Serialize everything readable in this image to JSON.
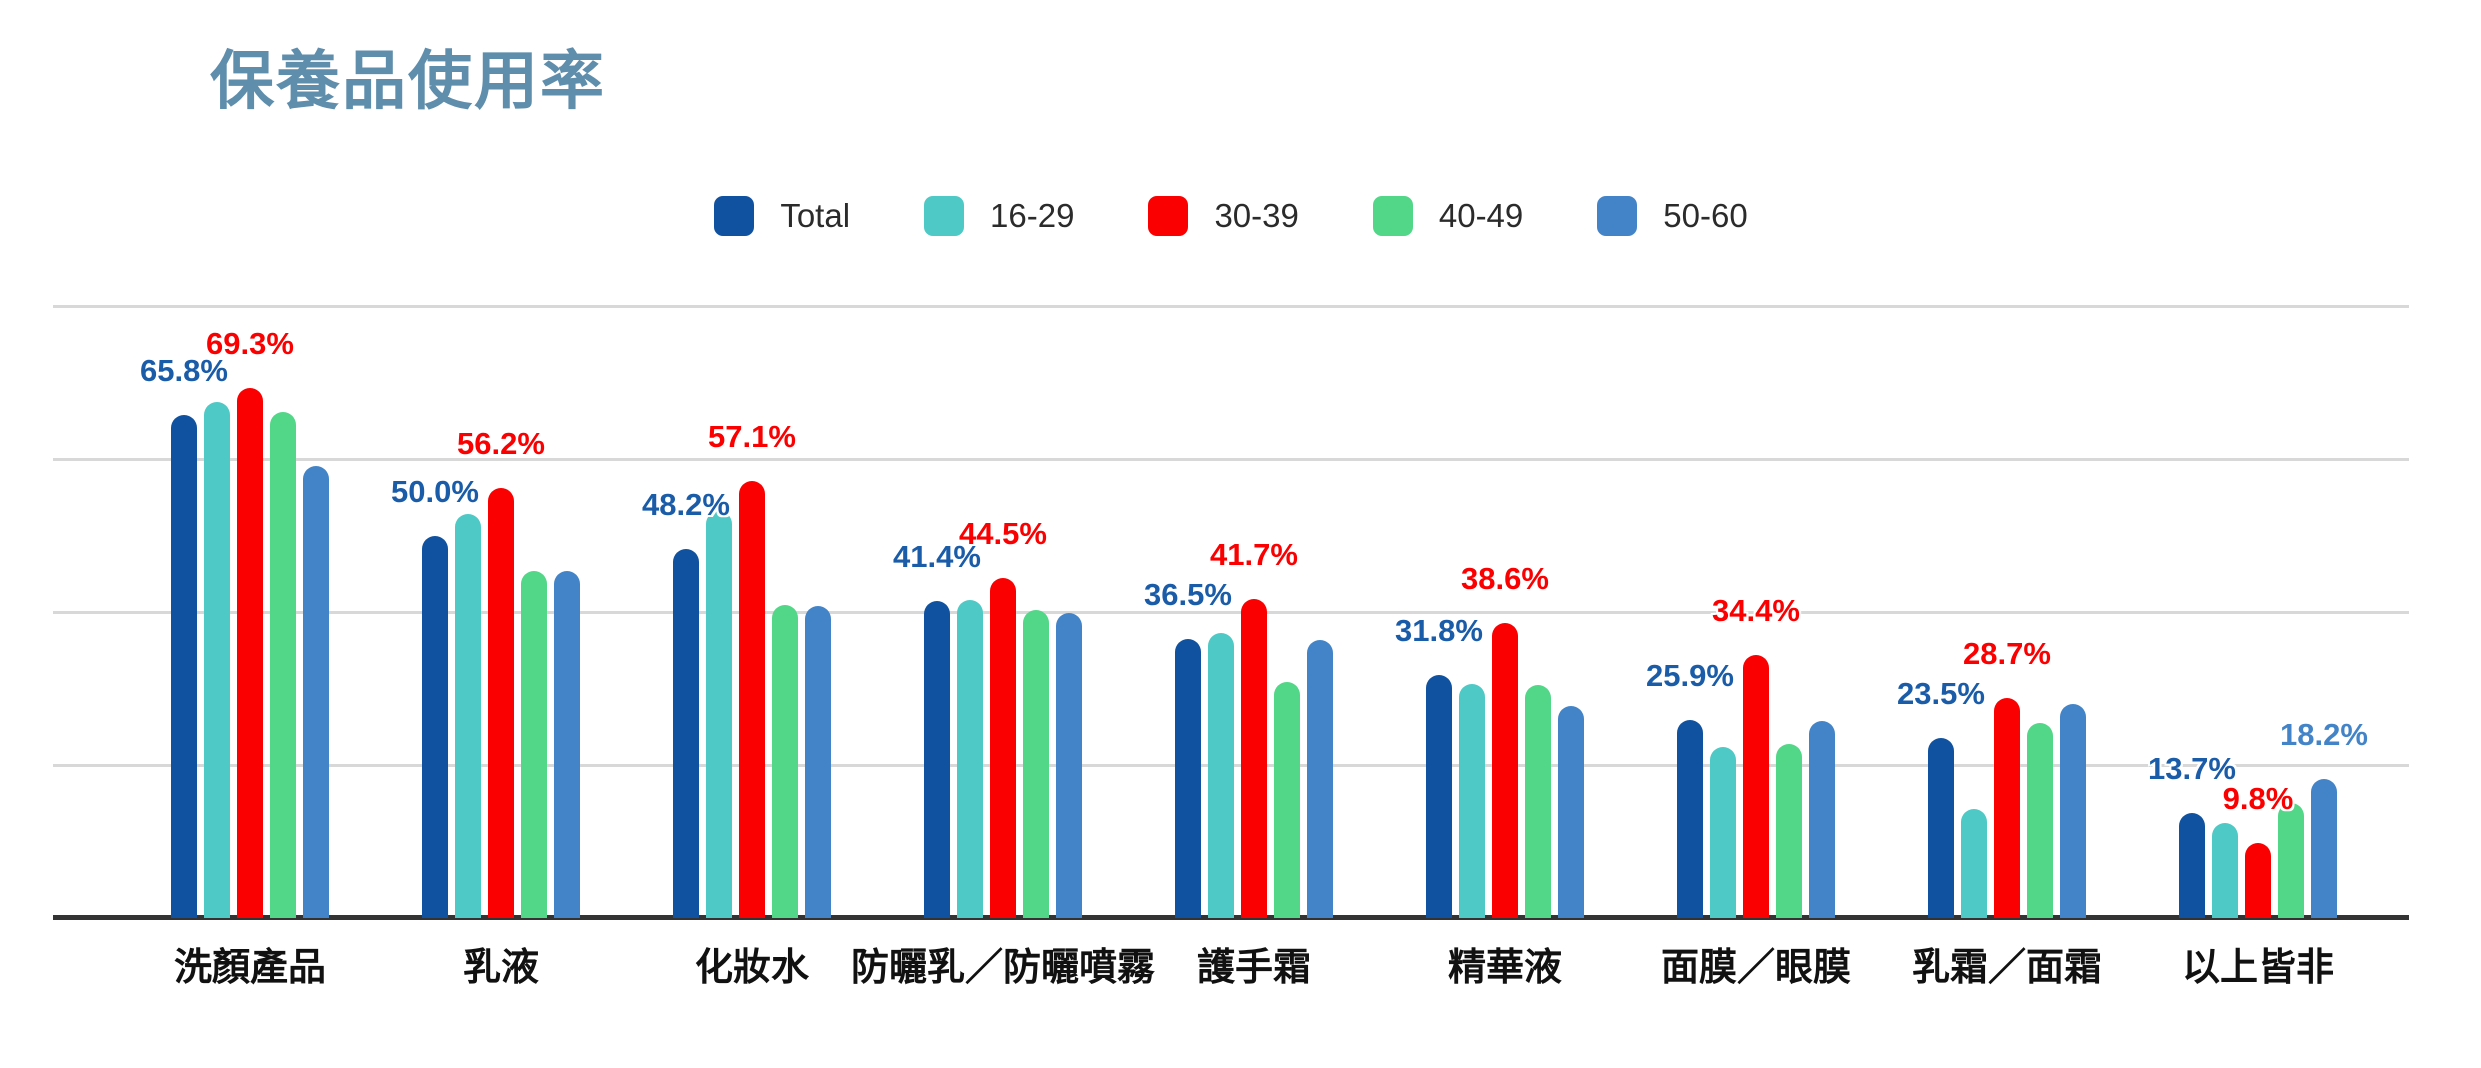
{
  "title": "保養品使用率",
  "colors": {
    "title": "#5F8EAC",
    "gridline": "#d8d8d8",
    "axis": "#333333",
    "category_label": "#111111",
    "legend_text": "#2b2b2b",
    "background": "#ffffff"
  },
  "chart_data": {
    "type": "bar",
    "title": "保養品使用率",
    "xlabel": "",
    "ylabel": "",
    "ylim": [
      0,
      100
    ],
    "gridlines_pct": [
      20,
      40,
      60,
      80
    ],
    "grid": true,
    "legend_position": "top",
    "value_label_format": "{value}%",
    "categories": [
      "洗顏產品",
      "乳液",
      "化妝水",
      "防曬乳／防曬噴霧",
      "護手霜",
      "精華液",
      "面膜／眼膜",
      "乳霜／面霜",
      "以上皆非"
    ],
    "series": [
      {
        "name": "Total",
        "color": "#10529F",
        "label_color": "#1A5CA8",
        "values": [
          65.8,
          50.0,
          48.2,
          41.4,
          36.5,
          31.8,
          25.9,
          23.5,
          13.7
        ],
        "labels_shown": "all"
      },
      {
        "name": "16-29",
        "color": "#4FC9C5",
        "label_color": "#4FC9C5",
        "values": [
          67.5,
          52.8,
          53.2,
          41.6,
          37.2,
          30.6,
          22.4,
          14.2,
          12.4
        ],
        "labels_shown": "none"
      },
      {
        "name": "30-39",
        "color": "#FA0000",
        "label_color": "#FA0000",
        "values": [
          69.3,
          56.2,
          57.1,
          44.5,
          41.7,
          38.6,
          34.4,
          28.7,
          9.8
        ],
        "labels_shown": "all"
      },
      {
        "name": "40-49",
        "color": "#52D687",
        "label_color": "#52D687",
        "values": [
          66.2,
          45.3,
          40.9,
          40.3,
          30.9,
          30.4,
          22.8,
          25.5,
          15.0
        ],
        "labels_shown": "none"
      },
      {
        "name": "50-60",
        "color": "#4384C8",
        "label_color": "#4384C8",
        "values": [
          59.1,
          45.4,
          40.8,
          39.9,
          36.4,
          27.7,
          25.8,
          28.0,
          18.2
        ],
        "labels_shown": [
          8
        ]
      }
    ]
  }
}
